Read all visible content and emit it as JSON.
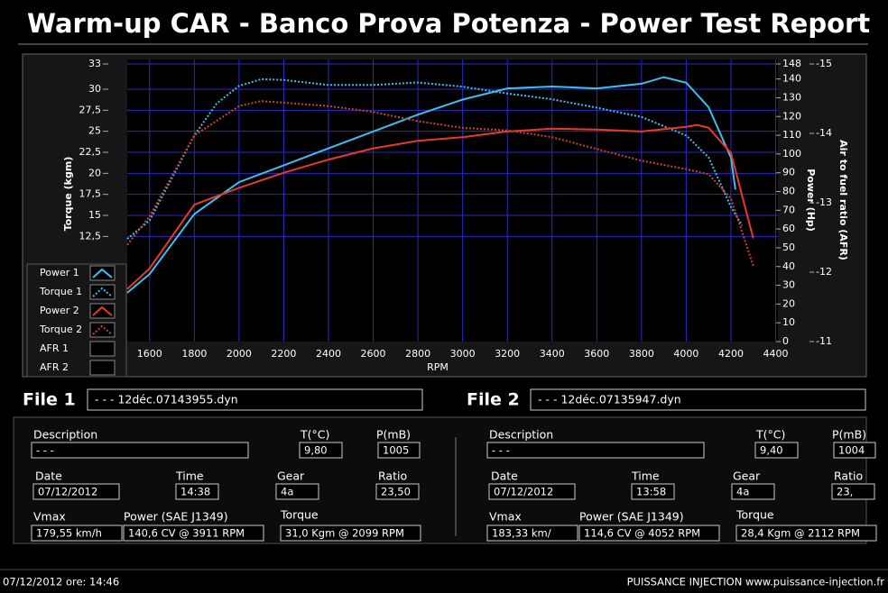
{
  "header": {
    "title": "Warm-up CAR  - Banco Prova Potenza -  Power Test Report"
  },
  "chart_data": {
    "type": "line",
    "x_label": "RPM",
    "y_label": "Torque (kgm)",
    "y2_label": "Power (Hp)",
    "y3_label": "Air to fuel ratio (AFR)",
    "xlim": [
      1500,
      4410
    ],
    "xticks": [
      1600,
      1800,
      2000,
      2200,
      2400,
      2600,
      2800,
      3000,
      3200,
      3400,
      3600,
      3800,
      4000,
      4200,
      4400
    ],
    "ylim": [
      0,
      33
    ],
    "yticks": [
      {
        "value": 12.5,
        "label": "12,5"
      },
      15,
      {
        "value": 17.5,
        "label": "17,5"
      },
      20,
      {
        "value": 22.5,
        "label": "22,5"
      },
      25,
      {
        "value": 27.5,
        "label": "27,5"
      },
      30,
      33
    ],
    "y2lim": [
      0,
      148
    ],
    "y2ticks": [
      0,
      10,
      20,
      30,
      40,
      50,
      60,
      70,
      80,
      90,
      100,
      110,
      120,
      130,
      140,
      148
    ],
    "y3lim": [
      -11,
      -15
    ],
    "y3ticks": [
      -11,
      -12,
      -13,
      -14,
      -15
    ],
    "grid": true,
    "series": [
      {
        "name": "Power 1",
        "color": "#3cc0f0",
        "line": "solid",
        "axis": "y2",
        "x": [
          1500,
          1600,
          1800,
          2000,
          2200,
          2400,
          2600,
          2800,
          3000,
          3200,
          3400,
          3600,
          3800,
          3900,
          4000,
          4100,
          4200,
          4220
        ],
        "values": [
          26,
          36,
          68,
          85,
          94,
          103,
          112,
          121,
          129,
          135,
          136,
          135,
          137.5,
          141,
          138,
          125,
          98,
          81
        ]
      },
      {
        "name": "Torque 1",
        "color": "#3cc0f0",
        "line": "dotted",
        "axis": "y",
        "x": [
          1500,
          1600,
          1800,
          1900,
          2000,
          2100,
          2200,
          2400,
          2600,
          2800,
          3000,
          3200,
          3400,
          3600,
          3800,
          4000,
          4100,
          4200,
          4250
        ],
        "values": [
          12.2,
          14.4,
          24.5,
          28.3,
          30.4,
          31.2,
          31.1,
          30.5,
          30.5,
          30.8,
          30.3,
          29.5,
          28.8,
          27.8,
          26.7,
          24.5,
          21.9,
          16,
          13.8
        ]
      },
      {
        "name": "Power 2",
        "color": "#e8392a",
        "line": "solid",
        "axis": "y2",
        "x": [
          1500,
          1600,
          1800,
          2000,
          2200,
          2400,
          2600,
          2800,
          3000,
          3200,
          3400,
          3600,
          3800,
          4000,
          4050,
          4100,
          4200,
          4300
        ],
        "values": [
          28,
          39,
          73,
          82,
          90,
          97,
          103,
          107,
          109,
          112,
          113.5,
          113,
          112,
          114.5,
          115.5,
          114,
          100.5,
          55
        ]
      },
      {
        "name": "Torque 2",
        "color": "#c8462e",
        "line": "dotted",
        "axis": "y",
        "x": [
          1500,
          1600,
          1800,
          2000,
          2100,
          2400,
          2600,
          2800,
          3000,
          3200,
          3400,
          3600,
          3800,
          4000,
          4100,
          4200,
          4300
        ],
        "values": [
          11.5,
          14.9,
          24.5,
          28,
          28.6,
          28,
          27.3,
          26.2,
          25.4,
          25.1,
          24.3,
          22.9,
          21.5,
          20.5,
          19.9,
          17,
          9
        ]
      },
      {
        "name": "AFR 1"
      },
      {
        "name": "AFR 2"
      }
    ]
  },
  "files": [
    {
      "label": "File 1",
      "name": "- - - 12déc.07143955.dyn",
      "fields": [
        {
          "label": "Description",
          "value": "- - -"
        },
        {
          "label": "T(°C)",
          "value": "9,80"
        },
        {
          "label": "P(mB)",
          "value": "1005"
        },
        {
          "label": "Date",
          "value": "07/12/2012"
        },
        {
          "label": "Time",
          "value": "14:38"
        },
        {
          "label": "Gear",
          "value": "4a"
        },
        {
          "label": "Ratio",
          "value": "23,50"
        },
        {
          "label": "Vmax",
          "value": "179,55 km/h"
        },
        {
          "label": "Power (SAE J1349)",
          "value": "140,6 CV  @ 3911  RPM"
        },
        {
          "label": "Torque",
          "value": "31,0 Kgm  @ 2099  RPM"
        }
      ]
    },
    {
      "label": "File 2",
      "name": "- - - 12déc.07135947.dyn",
      "fields": [
        {
          "label": "Description",
          "value": "- - -"
        },
        {
          "label": "T(°C)",
          "value": "9,40"
        },
        {
          "label": "P(mB)",
          "value": "1004"
        },
        {
          "label": "Date",
          "value": "07/12/2012"
        },
        {
          "label": "Time",
          "value": "13:58"
        },
        {
          "label": "Gear",
          "value": "4a"
        },
        {
          "label": "Ratio",
          "value": "23,"
        },
        {
          "label": "Vmax",
          "value": "183,33 km/"
        },
        {
          "label": "Power (SAE J1349)",
          "value": "114,6 CV  @ 4052  RPM"
        },
        {
          "label": "Torque",
          "value": "28,4 Kgm  @ 2112  RPM"
        }
      ]
    }
  ],
  "footer": {
    "left": "07/12/2012  ore: 14:46",
    "right": "PUISSANCE INJECTION www.puissance-injection.fr"
  }
}
